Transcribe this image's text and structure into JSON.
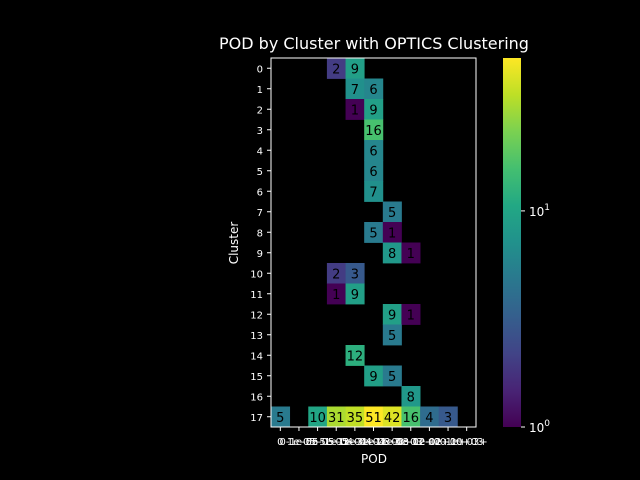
{
  "chart_data": {
    "type": "heatmap",
    "title": "POD by Cluster with OPTICS Clustering",
    "xlabel": "POD",
    "ylabel": "Cluster",
    "x_categories": [
      "0",
      "0-1e-05",
      "1e-05-5e-05",
      "5e-05-1e-04",
      "1e-04-3e-04",
      "3e-04-1e-03",
      "1e-03-3e-03",
      "3e-03-1e-02",
      "1e-02-1e+00",
      "1e+00-1e+03",
      "1e+03+"
    ],
    "x_tick_labels_visible": [
      "0",
      "0-1e-05",
      "1e-05-5e-05",
      "5e-05-1e-04",
      "1e-04-3e-04",
      "3e-04-1e-03",
      "1e-03-3e-03",
      "3e-03-1e-02",
      "1e-02-1e+00",
      "1e+00-1e+03",
      "1e+03+"
    ],
    "y_categories": [
      "0",
      "1",
      "2",
      "3",
      "4",
      "5",
      "6",
      "7",
      "8",
      "9",
      "10",
      "11",
      "12",
      "13",
      "14",
      "15",
      "16",
      "17"
    ],
    "cells": [
      {
        "row": 0,
        "col": 3,
        "value": 2
      },
      {
        "row": 0,
        "col": 4,
        "value": 9
      },
      {
        "row": 1,
        "col": 4,
        "value": 7
      },
      {
        "row": 1,
        "col": 5,
        "value": 6
      },
      {
        "row": 2,
        "col": 4,
        "value": 1
      },
      {
        "row": 2,
        "col": 5,
        "value": 9
      },
      {
        "row": 3,
        "col": 5,
        "value": 16
      },
      {
        "row": 4,
        "col": 5,
        "value": 6
      },
      {
        "row": 5,
        "col": 5,
        "value": 6
      },
      {
        "row": 6,
        "col": 5,
        "value": 7
      },
      {
        "row": 7,
        "col": 6,
        "value": 5
      },
      {
        "row": 8,
        "col": 5,
        "value": 5
      },
      {
        "row": 8,
        "col": 6,
        "value": 1
      },
      {
        "row": 9,
        "col": 6,
        "value": 8
      },
      {
        "row": 9,
        "col": 7,
        "value": 1
      },
      {
        "row": 10,
        "col": 3,
        "value": 2
      },
      {
        "row": 10,
        "col": 4,
        "value": 3
      },
      {
        "row": 11,
        "col": 3,
        "value": 1
      },
      {
        "row": 11,
        "col": 4,
        "value": 9
      },
      {
        "row": 12,
        "col": 6,
        "value": 9
      },
      {
        "row": 12,
        "col": 7,
        "value": 1
      },
      {
        "row": 13,
        "col": 6,
        "value": 5
      },
      {
        "row": 14,
        "col": 4,
        "value": 12
      },
      {
        "row": 15,
        "col": 5,
        "value": 9
      },
      {
        "row": 15,
        "col": 6,
        "value": 5
      },
      {
        "row": 16,
        "col": 7,
        "value": 8
      },
      {
        "row": 17,
        "col": 0,
        "value": 5
      },
      {
        "row": 17,
        "col": 2,
        "value": 10
      },
      {
        "row": 17,
        "col": 3,
        "value": 31
      },
      {
        "row": 17,
        "col": 4,
        "value": 35
      },
      {
        "row": 17,
        "col": 5,
        "value": 51
      },
      {
        "row": 17,
        "col": 6,
        "value": 42
      },
      {
        "row": 17,
        "col": 7,
        "value": 16
      },
      {
        "row": 17,
        "col": 8,
        "value": 4
      },
      {
        "row": 17,
        "col": 9,
        "value": 3
      }
    ],
    "colorbar": {
      "scale": "log",
      "min": 1,
      "max": 51,
      "colormap": "viridis",
      "ticks": [
        {
          "value": 1,
          "base": "10",
          "exp": "0"
        },
        {
          "value": 10,
          "base": "10",
          "exp": "1"
        }
      ]
    },
    "background": "#000000",
    "grid": false
  }
}
